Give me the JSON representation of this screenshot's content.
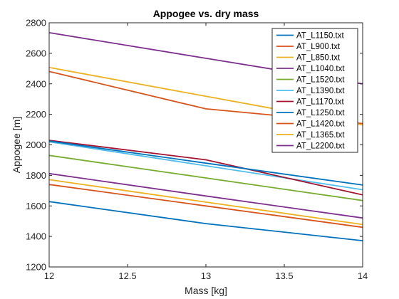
{
  "chart_data": {
    "type": "line",
    "title": "Appogee vs. dry mass",
    "xlabel": "Mass [kg]",
    "ylabel": "Appogee [m]",
    "xlim": [
      12,
      14
    ],
    "ylim": [
      1200,
      2800
    ],
    "xticks": [
      "12",
      "12.5",
      "13",
      "13.5",
      "14"
    ],
    "yticks": [
      "1200",
      "1400",
      "1600",
      "1800",
      "2000",
      "2200",
      "2400",
      "2600",
      "2800"
    ],
    "grid": false,
    "legend_position": "top-right",
    "x": [
      12,
      13,
      14
    ],
    "series": [
      {
        "name": "AT_L1150.txt",
        "color": "#0072BD",
        "values": [
          1628,
          1484,
          1372
        ]
      },
      {
        "name": "AT_L900.txt",
        "color": "#D95319",
        "values": [
          2481,
          2236,
          2140
        ]
      },
      {
        "name": "AT_L850.txt",
        "color": "#EDB120",
        "values": [
          2507,
          2318,
          2130
        ]
      },
      {
        "name": "AT_L1040.txt",
        "color": "#7E2F8E",
        "values": [
          2735,
          2567,
          2400
        ]
      },
      {
        "name": "AT_L1520.txt",
        "color": "#77AC30",
        "values": [
          1931,
          1783,
          1635
        ]
      },
      {
        "name": "AT_L1390.txt",
        "color": "#4DBEEE",
        "values": [
          2020,
          1863,
          1706
        ]
      },
      {
        "name": "AT_L1170.txt",
        "color": "#A2142F",
        "values": [
          2030,
          1902,
          1672
        ]
      },
      {
        "name": "AT_L1250.txt",
        "color": "#0072BD",
        "values": [
          2025,
          1880,
          1737
        ]
      },
      {
        "name": "AT_L1420.txt",
        "color": "#D95319",
        "values": [
          1740,
          1600,
          1460
        ]
      },
      {
        "name": "AT_L1365.txt",
        "color": "#EDB120",
        "values": [
          1772,
          1625,
          1478
        ]
      },
      {
        "name": "AT_L2200.txt",
        "color": "#7E2F8E",
        "values": [
          1812,
          1665,
          1521
        ]
      }
    ]
  }
}
